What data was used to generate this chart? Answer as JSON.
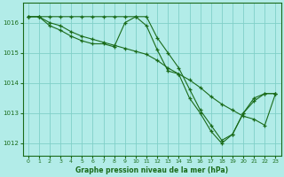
{
  "title": "Graphe pression niveau de la mer (hPa)",
  "background_color": "#b2ece8",
  "grid_color": "#80d0c8",
  "line_color": "#1a6b1a",
  "marker_color": "#1a6b1a",
  "xlim": [
    -0.5,
    23.5
  ],
  "ylim": [
    1011.6,
    1016.65
  ],
  "yticks": [
    1012,
    1013,
    1014,
    1015,
    1016
  ],
  "xticks": [
    0,
    1,
    2,
    3,
    4,
    5,
    6,
    7,
    8,
    9,
    10,
    11,
    12,
    13,
    14,
    15,
    16,
    17,
    18,
    19,
    20,
    21,
    22,
    23
  ],
  "series1": [
    1016.2,
    1016.2,
    1016.2,
    1016.2,
    1016.2,
    1016.2,
    1016.2,
    1016.2,
    1016.2,
    1016.2,
    1016.2,
    1016.2,
    1015.5,
    1015.0,
    1014.5,
    1013.8,
    1013.1,
    1012.6,
    1012.1,
    1012.3,
    1013.0,
    1013.5,
    1013.65,
    1013.65
  ],
  "series2": [
    1016.2,
    1016.2,
    1016.0,
    1015.9,
    1015.7,
    1015.55,
    1015.45,
    1015.35,
    1015.25,
    1015.15,
    1015.05,
    1014.95,
    1014.75,
    1014.5,
    1014.3,
    1014.1,
    1013.85,
    1013.55,
    1013.3,
    1013.1,
    1012.9,
    1012.8,
    1012.6,
    1013.65
  ],
  "series3": [
    1016.2,
    1016.2,
    1015.9,
    1015.75,
    1015.55,
    1015.4,
    1015.3,
    1015.3,
    1015.2,
    1016.0,
    1016.2,
    1015.9,
    1015.1,
    1014.4,
    1014.3,
    1013.5,
    1013.0,
    1012.4,
    1012.0,
    1012.3,
    1013.0,
    1013.4,
    1013.65,
    1013.65
  ]
}
